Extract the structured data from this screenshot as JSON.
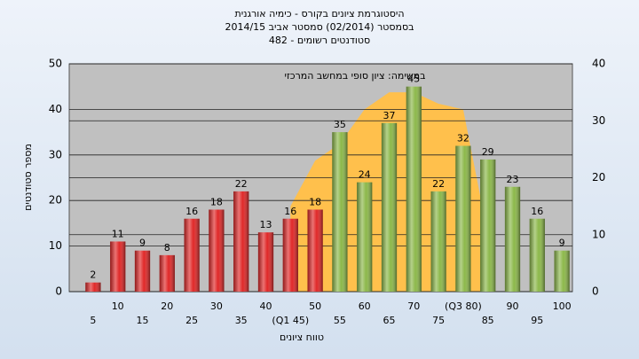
{
  "chart_data": {
    "type": "bar",
    "title": [
      "היסטוגרמת ציונים בקורס - כימיה אורגנית",
      "בסמסטר (02/2014) סמסטר אביב 2014/15",
      "סטודנטים רשומים - 482"
    ],
    "annotation": "במשימה: ציון סופי במחשב המרכזי",
    "ylabel": "מספר סטודנטים",
    "xlabel": "טווח ציונים",
    "categories": [
      "5",
      "10",
      "15",
      "20",
      "25",
      "30",
      "35",
      "40",
      "(Q1 45)",
      "50",
      "55",
      "60",
      "65",
      "70",
      "75",
      "(Q3 80)",
      "85",
      "90",
      "95",
      "100"
    ],
    "values": [
      2,
      11,
      9,
      8,
      16,
      18,
      22,
      13,
      16,
      18,
      35,
      24,
      37,
      45,
      22,
      32,
      29,
      23,
      16,
      9
    ],
    "bar_colors": [
      "#e02828",
      "#e02828",
      "#e02828",
      "#e02828",
      "#e02828",
      "#e02828",
      "#e02828",
      "#e02828",
      "#e02828",
      "#e02828",
      "#8cb84a",
      "#8cb84a",
      "#8cb84a",
      "#8cb84a",
      "#8cb84a",
      "#8cb84a",
      "#8cb84a",
      "#8cb84a",
      "#8cb84a",
      "#8cb84a"
    ],
    "area": {
      "values": [
        null,
        null,
        null,
        null,
        null,
        null,
        null,
        null,
        15,
        23,
        26,
        32,
        35,
        35,
        33,
        32,
        10,
        null,
        null,
        null
      ],
      "color": "#ffc04c",
      "axis": "y2"
    },
    "ylim": [
      0,
      50
    ],
    "yticks": [
      0,
      10,
      20,
      30,
      40,
      50
    ],
    "y2lim": [
      0,
      40
    ],
    "y2ticks": [
      0,
      10,
      20,
      30,
      40
    ],
    "grid": true
  }
}
